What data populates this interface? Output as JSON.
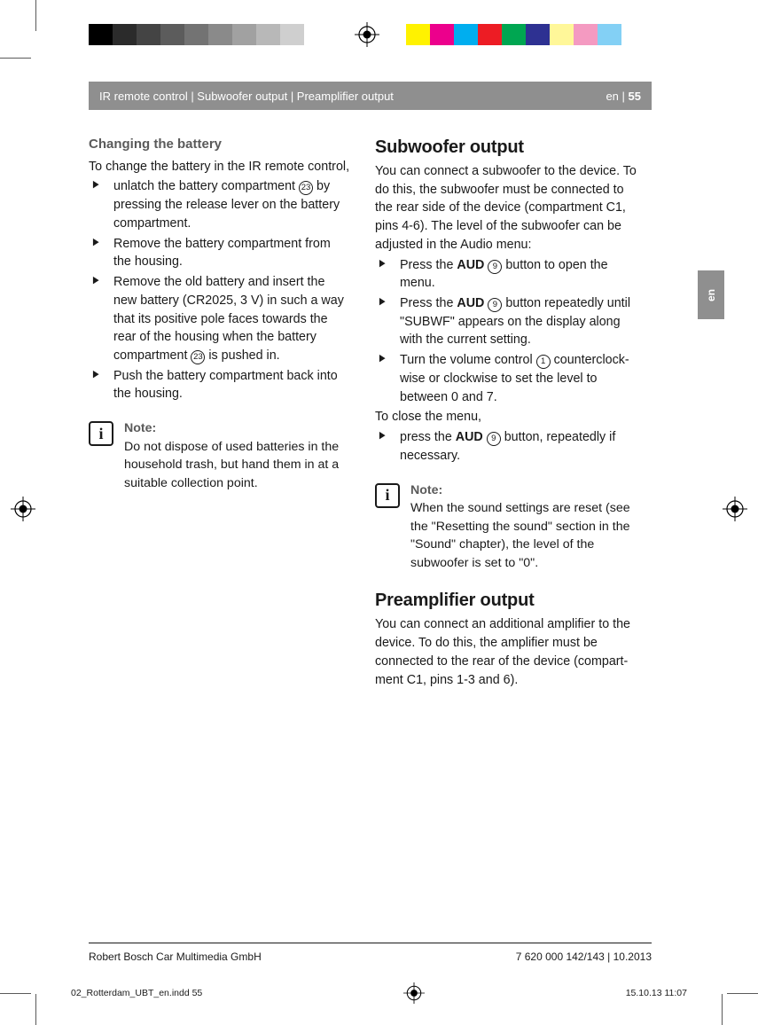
{
  "printer_marks": {
    "grey_swatches": [
      "#000000",
      "#2b2b2b",
      "#444444",
      "#5c5c5c",
      "#737373",
      "#8a8a8a",
      "#a1a1a1",
      "#b8b8b8",
      "#cfcfcf",
      "#ffffff"
    ],
    "color_swatches": [
      "#fff200",
      "#ec008c",
      "#00aeef",
      "#ed1c24",
      "#00a651",
      "#2e3192",
      "#fff799",
      "#f49ac1",
      "#83d0f5",
      "#ffffff"
    ]
  },
  "header": {
    "breadcrumb": "IR remote control | Subwoofer output | Preamplifier output",
    "lang": "en",
    "page": "55"
  },
  "side_tab": "en",
  "left": {
    "h_sub": "Changing the battery",
    "intro": "To change the battery in the IR remote control,",
    "s1a": "unlatch the battery compartment ",
    "s1b": " by pressing the release lever on the battery compartment.",
    "s2": "Remove the battery compartment from the housing.",
    "s3a": "Remove the old battery and insert the new battery (CR2025, 3 V) in such a way that its positive pole faces towards the rear of the housing when the battery compart­ment ",
    "s3b": " is pushed in.",
    "s4": "Push the battery compartment back into the housing.",
    "note_title": "Note:",
    "note_body": "Do not dispose of used batteries in the household trash, but hand them in at a suitable collection point."
  },
  "right": {
    "h1": "Subwoofer output",
    "p1": "You can connect a subwoofer to the device. To do this, the subwoofer must be connected to the rear side of the device (compartment C1, pins 4-6). The level of the subwoofer can be adjusted in the Audio menu:",
    "s1a": "Press the ",
    "s1b": " button to open the menu.",
    "s2a": "Press the  ",
    "s2b": " button repeatedly until \"SUBWF\" appears on the display along with the current setting.",
    "s3a": "Turn the volume control ",
    "s3b": " counterclock­wise or clockwise to set the level to between 0 and 7.",
    "close_intro": "To close the menu,",
    "s4a": "press the ",
    "s4b": " button, repeatedly if necessary.",
    "note_title": "Note:",
    "note_body": "When the sound settings are reset (see the \"Resetting the sound\" section in the \"Sound\" chapter), the level of the subwoofer is set to \"0\".",
    "h2": "Preamplifier output",
    "p2": "You can connect an additional amplifier to the device. To do this, the amplifier must be connected to the rear of the device (compart­ment C1, pins 1-3 and 6)."
  },
  "labels": {
    "aud": "AUD",
    "ref23": "23",
    "ref9": "9",
    "ref1": "1"
  },
  "footer": {
    "company": "Robert Bosch Car Multimedia GmbH",
    "docnum": "7 620 000 142/143 | 10.2013"
  },
  "imprint": {
    "file": "02_Rotterdam_UBT_en.indd   55",
    "stamp": "15.10.13   11:07"
  }
}
